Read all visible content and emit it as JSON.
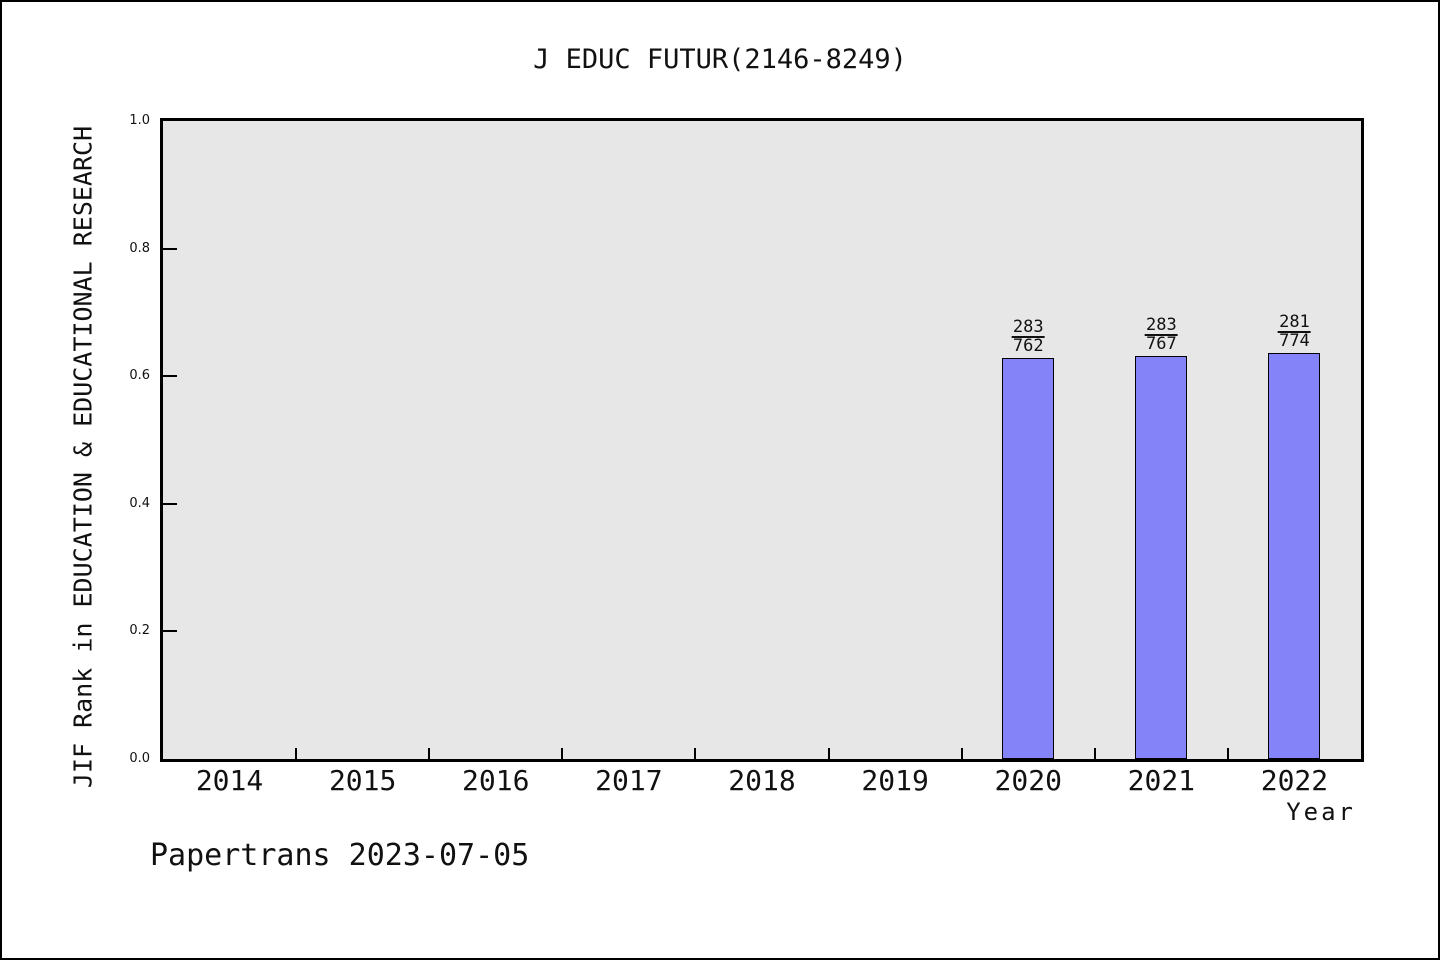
{
  "footer": {
    "text": "Papertrans 2023-07-05"
  },
  "chart_data": {
    "type": "bar",
    "title": "J EDUC FUTUR(2146-8249)",
    "xlabel": "Year",
    "ylabel": "JIF Rank in EDUCATION & EDUCATIONAL RESEARCH",
    "categories": [
      "2014",
      "2015",
      "2016",
      "2017",
      "2018",
      "2019",
      "2020",
      "2021",
      "2022"
    ],
    "ylim": [
      0.0,
      1.0
    ],
    "ytick_labels": [
      "1.0",
      "0.8",
      "0.6",
      "0.4",
      "0.2",
      "0.0"
    ],
    "grid": false,
    "legend": "none",
    "plot_background": "#e7e7e7",
    "bar_color": "#8484f8",
    "bar_edge_color": "#000000",
    "bars": [
      {
        "category": "2020",
        "label_numerator": "283",
        "label_denominator": "762",
        "value": 0.6286
      },
      {
        "category": "2021",
        "label_numerator": "283",
        "label_denominator": "767",
        "value": 0.631
      },
      {
        "category": "2022",
        "label_numerator": "281",
        "label_denominator": "774",
        "value": 0.6369
      }
    ]
  }
}
